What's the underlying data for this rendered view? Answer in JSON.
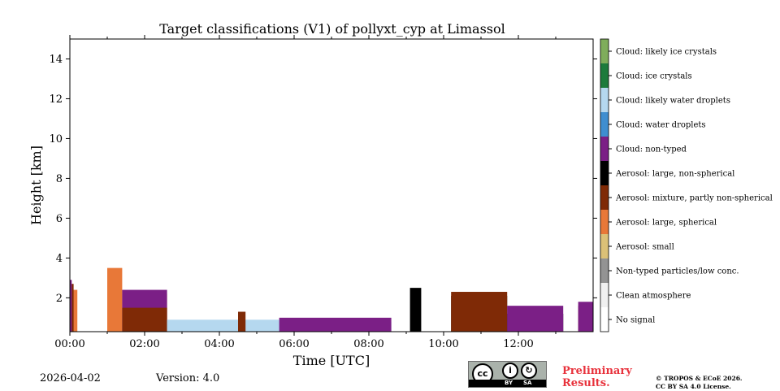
{
  "chart_data": {
    "type": "heatmap",
    "title": "Target classifications (V1) of pollyxt_cyp at Limassol",
    "xlabel": "Time [UTC]",
    "ylabel": "Height [km]",
    "xlim": [
      0,
      14
    ],
    "ylim": [
      0.3,
      15
    ],
    "x_ticks": [
      0,
      2,
      4,
      6,
      8,
      10,
      12
    ],
    "x_tick_labels": [
      "00:00",
      "02:00",
      "04:00",
      "06:00",
      "08:00",
      "10:00",
      "12:00"
    ],
    "y_ticks": [
      2,
      4,
      6,
      8,
      10,
      12,
      14
    ],
    "y_tick_labels": [
      "2",
      "4",
      "6",
      "8",
      "10",
      "12",
      "14"
    ],
    "legend": [
      {
        "label": "Cloud: likely ice crystals",
        "color": "#7fad5b"
      },
      {
        "label": "Cloud: ice crystals",
        "color": "#1d7b3c"
      },
      {
        "label": "Cloud: likely water droplets",
        "color": "#b5d8ef"
      },
      {
        "label": "Cloud: water droplets",
        "color": "#3f8ed0"
      },
      {
        "label": "Cloud: non-typed",
        "color": "#7b1f86"
      },
      {
        "label": "Aerosol: large, non-spherical",
        "color": "#000000"
      },
      {
        "label": "Aerosol: mixture, partly non-spherical",
        "color": "#7f2a06"
      },
      {
        "label": "Aerosol: large, spherical",
        "color": "#e87838"
      },
      {
        "label": "Aerosol: small",
        "color": "#dcc177"
      },
      {
        "label": "Non-typed particles/low conc.",
        "color": "#939393"
      },
      {
        "label": "Clean atmosphere",
        "color": "#f0f0f0"
      },
      {
        "label": "No signal",
        "color": "#ffffff"
      }
    ],
    "layers": [
      {
        "class": "Aerosol: large, spherical",
        "x_start": 0.05,
        "x_end": 0.2,
        "top_km": 2.4
      },
      {
        "class": "Aerosol: mixture, partly non-spherical",
        "x_start": 0.0,
        "x_end": 0.1,
        "top_km": 2.7
      },
      {
        "class": "Cloud: non-typed",
        "x_start": 0.0,
        "x_end": 0.05,
        "top_km": 2.9
      },
      {
        "class": "Aerosol: large, spherical",
        "x_start": 1.0,
        "x_end": 1.4,
        "top_km": 3.5
      },
      {
        "class": "Aerosol: large, spherical",
        "x_start": 1.4,
        "x_end": 2.6,
        "top_km": 2.2
      },
      {
        "class": "Cloud: non-typed",
        "x_start": 1.4,
        "x_end": 2.6,
        "top_km": 2.4
      },
      {
        "class": "Aerosol: mixture, partly non-spherical",
        "x_start": 1.4,
        "x_end": 2.6,
        "top_km": 1.5
      },
      {
        "class": "Cloud: likely water droplets",
        "x_start": 2.6,
        "x_end": 5.6,
        "top_km": 0.9
      },
      {
        "class": "Aerosol: mixture, partly non-spherical",
        "x_start": 4.5,
        "x_end": 4.7,
        "top_km": 1.3
      },
      {
        "class": "Cloud: likely water droplets",
        "x_start": 5.6,
        "x_end": 8.6,
        "top_km": 0.8
      },
      {
        "class": "Cloud: non-typed",
        "x_start": 5.6,
        "x_end": 8.6,
        "top_km": 1.0
      },
      {
        "class": "Aerosol: large, non-spherical",
        "x_start": 9.1,
        "x_end": 9.4,
        "top_km": 2.5
      },
      {
        "class": "Aerosol: large, non-spherical",
        "x_start": 10.2,
        "x_end": 11.7,
        "top_km": 2.1
      },
      {
        "class": "Aerosol: mixture, partly non-spherical",
        "x_start": 10.2,
        "x_end": 11.7,
        "top_km": 2.3
      },
      {
        "class": "Aerosol: large, non-spherical",
        "x_start": 11.7,
        "x_end": 13.2,
        "top_km": 1.2
      },
      {
        "class": "Cloud: non-typed",
        "x_start": 11.7,
        "x_end": 13.2,
        "top_km": 1.6
      },
      {
        "class": "Aerosol: mixture, partly non-spherical",
        "x_start": 13.6,
        "x_end": 14.0,
        "top_km": 1.6
      },
      {
        "class": "Cloud: non-typed",
        "x_start": 13.6,
        "x_end": 14.0,
        "top_km": 1.8
      }
    ]
  },
  "info": {
    "date": "2026-04-02",
    "version": "Version: 4.0",
    "preliminary_line1": "Preliminary",
    "preliminary_line2": "Results.",
    "copyright_line1": "© TROPOS & ECoE 2026.",
    "copyright_line2": "CC BY SA 4.0 License.",
    "license_by": "BY",
    "license_sa": "SA",
    "license_cc": "cc"
  }
}
